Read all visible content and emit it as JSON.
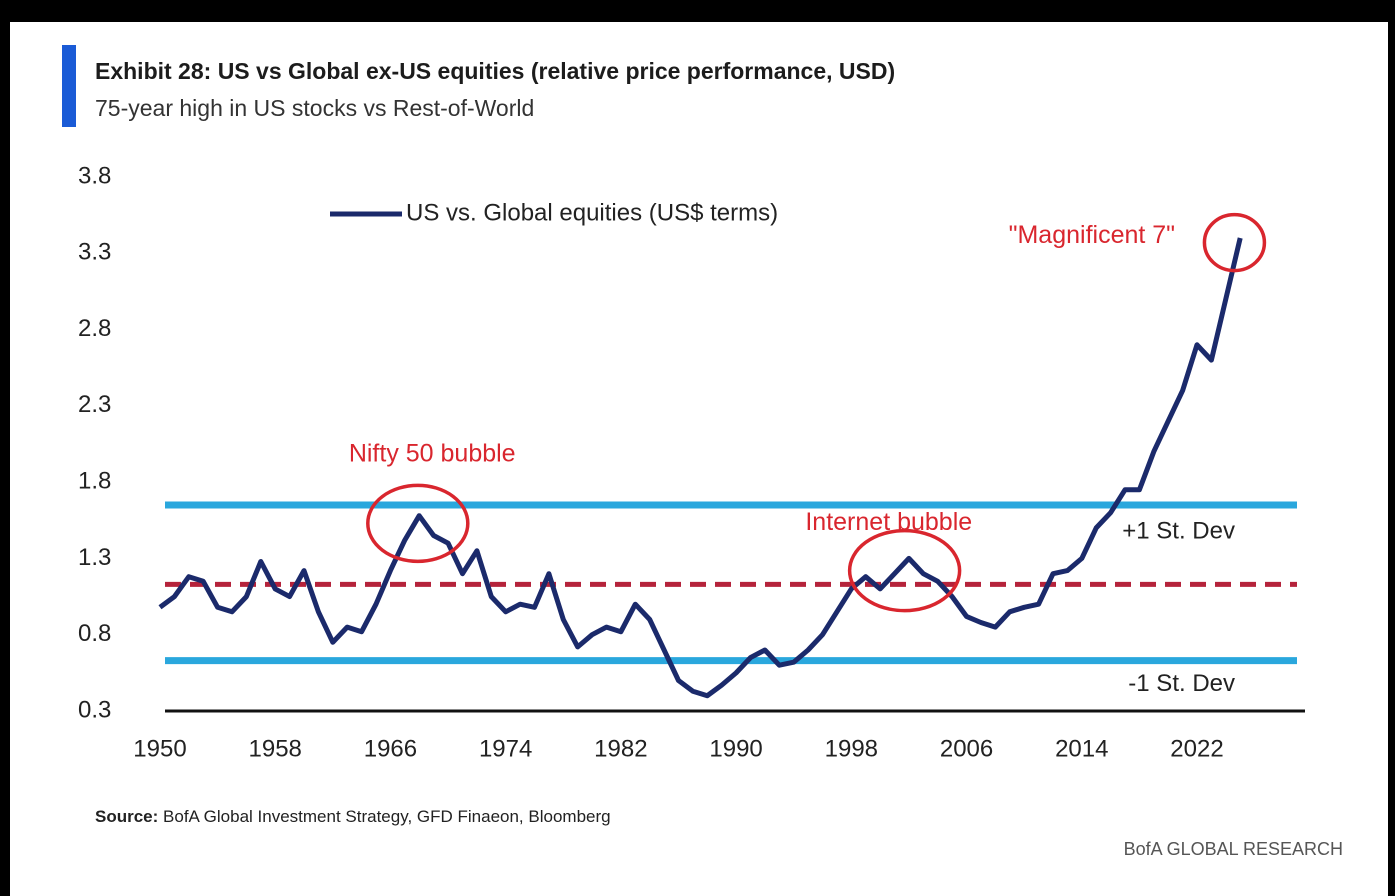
{
  "chart_data": {
    "type": "line",
    "title": "Exhibit 28: US vs Global ex-US equities (relative price performance, USD)",
    "subtitle": "75-year high in US stocks vs Rest-of-World",
    "legend": "upper left",
    "x": [
      1950,
      1951,
      1952,
      1953,
      1954,
      1955,
      1956,
      1957,
      1958,
      1959,
      1960,
      1961,
      1962,
      1963,
      1964,
      1965,
      1966,
      1967,
      1968,
      1969,
      1970,
      1971,
      1972,
      1973,
      1974,
      1975,
      1976,
      1977,
      1978,
      1979,
      1980,
      1981,
      1982,
      1983,
      1984,
      1985,
      1986,
      1987,
      1988,
      1989,
      1990,
      1991,
      1992,
      1993,
      1994,
      1995,
      1996,
      1997,
      1998,
      1999,
      2000,
      2001,
      2002,
      2003,
      2004,
      2005,
      2006,
      2007,
      2008,
      2009,
      2010,
      2011,
      2012,
      2013,
      2014,
      2015,
      2016,
      2017,
      2018,
      2019,
      2020,
      2021,
      2022,
      2023,
      2024,
      2025
    ],
    "series": [
      {
        "name": "US vs. Global equities (US$ terms)",
        "color": "#1b2a6b",
        "values": [
          0.98,
          1.05,
          1.18,
          1.15,
          0.98,
          0.95,
          1.05,
          1.28,
          1.1,
          1.05,
          1.22,
          0.95,
          0.75,
          0.85,
          0.82,
          1.0,
          1.22,
          1.42,
          1.58,
          1.45,
          1.4,
          1.2,
          1.35,
          1.05,
          0.95,
          1.0,
          0.98,
          1.2,
          0.9,
          0.72,
          0.8,
          0.85,
          0.82,
          1.0,
          0.9,
          0.7,
          0.5,
          0.43,
          0.4,
          0.47,
          0.55,
          0.65,
          0.7,
          0.6,
          0.62,
          0.7,
          0.8,
          0.95,
          1.1,
          1.18,
          1.1,
          1.2,
          1.3,
          1.2,
          1.15,
          1.05,
          0.92,
          0.88,
          0.85,
          0.95,
          0.98,
          1.0,
          1.2,
          1.22,
          1.3,
          1.5,
          1.6,
          1.75,
          1.75,
          2.0,
          2.2,
          2.4,
          2.7,
          2.6,
          3.0,
          3.4
        ]
      }
    ],
    "reference_lines": [
      {
        "label": "+1 St. Dev",
        "value": 1.65,
        "color": "#2aa7dd",
        "dashed": false
      },
      {
        "value": 1.13,
        "color": "#b5233b",
        "dashed": true
      },
      {
        "label": "-1 St. Dev",
        "value": 0.63,
        "color": "#2aa7dd",
        "dashed": false
      }
    ],
    "annotations": [
      {
        "text": "Nifty 50 bubble",
        "x": 1968.9,
        "y": 1.98,
        "circle_x": 1967.9,
        "circle_y": 1.53
      },
      {
        "text": "Internet bubble",
        "x": 2000.6,
        "y": 1.53,
        "circle_x": 2001.7,
        "circle_y": 1.22
      },
      {
        "text": "\"Magnificent 7\"",
        "x": 2014.7,
        "y": 3.41,
        "circle_x": 2024.6,
        "circle_y": 3.37
      }
    ],
    "annotation_color": "#d9262e",
    "xlim": [
      1950,
      2029.5
    ],
    "xticks": [
      1950,
      1958,
      1966,
      1974,
      1982,
      1990,
      1998,
      2006,
      2014,
      2022
    ],
    "ylim": [
      0.3,
      3.8
    ],
    "yticks": [
      0.3,
      0.8,
      1.3,
      1.8,
      2.3,
      2.8,
      3.3,
      3.8
    ],
    "source": {
      "label": "Source:",
      "text": " BofA Global Investment Strategy, GFD Finaeon, Bloomberg"
    },
    "footer": "BofA GLOBAL RESEARCH"
  }
}
